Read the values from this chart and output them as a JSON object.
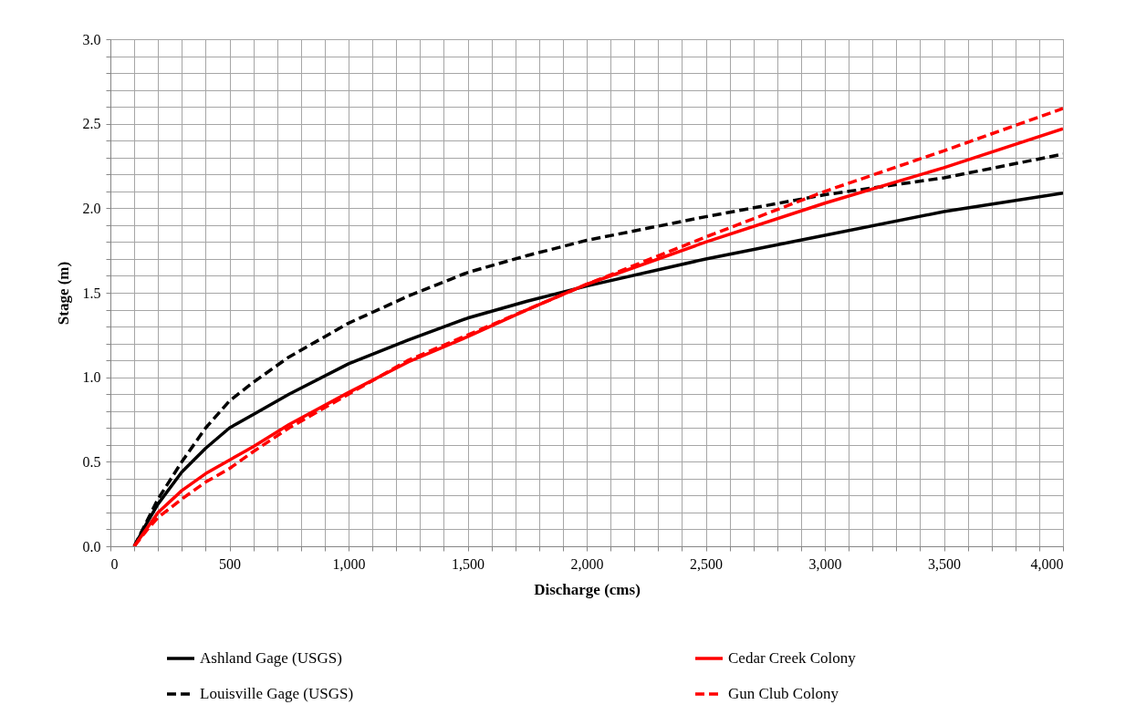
{
  "chart_data": {
    "type": "line",
    "xlabel": "Discharge (cms)",
    "ylabel": "Stage (m)",
    "series": [
      {
        "name": "Ashland Gage (USGS)",
        "color": "#000000",
        "line_style": "solid",
        "x": [
          100,
          150,
          200,
          300,
          400,
          500,
          600,
          750,
          1000,
          1250,
          1500,
          1750,
          2000,
          2500,
          3000,
          3500,
          4000
        ],
        "values": [
          0,
          0.13,
          0.25,
          0.44,
          0.58,
          0.7,
          0.78,
          0.9,
          1.08,
          1.22,
          1.35,
          1.45,
          1.54,
          1.7,
          1.84,
          1.98,
          2.09
        ]
      },
      {
        "name": "Louisville Gage (USGS)",
        "color": "#000000",
        "line_style": "dashed",
        "x": [
          100,
          150,
          200,
          300,
          400,
          500,
          600,
          750,
          1000,
          1250,
          1500,
          1750,
          2000,
          2500,
          3000,
          3500,
          4000
        ],
        "values": [
          0,
          0.14,
          0.28,
          0.5,
          0.7,
          0.86,
          0.97,
          1.12,
          1.32,
          1.48,
          1.62,
          1.72,
          1.81,
          1.95,
          2.08,
          2.18,
          2.32
        ]
      },
      {
        "name": "Cedar Creek Colony",
        "color": "#ff0000",
        "line_style": "solid",
        "x": [
          100,
          150,
          200,
          300,
          400,
          500,
          600,
          750,
          1000,
          1250,
          1500,
          1750,
          2000,
          2500,
          3000,
          3500,
          4000
        ],
        "values": [
          0,
          0.1,
          0.2,
          0.33,
          0.43,
          0.51,
          0.59,
          0.72,
          0.91,
          1.09,
          1.24,
          1.4,
          1.55,
          1.8,
          2.03,
          2.24,
          2.47
        ]
      },
      {
        "name": "Gun Club Colony",
        "color": "#ff0000",
        "line_style": "dashed",
        "x": [
          100,
          150,
          200,
          300,
          400,
          500,
          600,
          750,
          1000,
          1250,
          1500,
          1750,
          2000,
          2500,
          3000,
          3500,
          4000
        ],
        "values": [
          0,
          0.09,
          0.17,
          0.28,
          0.38,
          0.46,
          0.56,
          0.7,
          0.9,
          1.1,
          1.25,
          1.4,
          1.55,
          1.83,
          2.1,
          2.34,
          2.59
        ]
      }
    ],
    "xlim": [
      0,
      4000
    ],
    "xticks": [
      0,
      {
        "value": 100,
        "label": null
      },
      {
        "value": 200,
        "label": null
      },
      {
        "value": 300,
        "label": null
      },
      {
        "value": 400,
        "label": null
      },
      500,
      {
        "value": 600,
        "label": null
      },
      {
        "value": 700,
        "label": null
      },
      {
        "value": 800,
        "label": null
      },
      {
        "value": 900,
        "label": null
      },
      {
        "value": 1000,
        "label": "1,000"
      },
      {
        "value": 1100,
        "label": null
      },
      {
        "value": 1200,
        "label": null
      },
      {
        "value": 1300,
        "label": null
      },
      {
        "value": 1400,
        "label": null
      },
      {
        "value": 1500,
        "label": "1,500"
      },
      {
        "value": 1600,
        "label": null
      },
      {
        "value": 1700,
        "label": null
      },
      {
        "value": 1800,
        "label": null
      },
      {
        "value": 1900,
        "label": null
      },
      {
        "value": 2000,
        "label": "2,000"
      },
      {
        "value": 2100,
        "label": null
      },
      {
        "value": 2200,
        "label": null
      },
      {
        "value": 2300,
        "label": null
      },
      {
        "value": 2400,
        "label": null
      },
      {
        "value": 2500,
        "label": "2,500"
      },
      {
        "value": 2600,
        "label": null
      },
      {
        "value": 2700,
        "label": null
      },
      {
        "value": 2800,
        "label": null
      },
      {
        "value": 2900,
        "label": null
      },
      {
        "value": 3000,
        "label": "3,000"
      },
      {
        "value": 3100,
        "label": null
      },
      {
        "value": 3200,
        "label": null
      },
      {
        "value": 3300,
        "label": null
      },
      {
        "value": 3400,
        "label": null
      },
      {
        "value": 3500,
        "label": "3,500"
      },
      {
        "value": 3600,
        "label": null
      },
      {
        "value": 3700,
        "label": null
      },
      {
        "value": 3800,
        "label": null
      },
      {
        "value": 3900,
        "label": null
      },
      {
        "value": 4000,
        "label": "4,000"
      }
    ],
    "ylim": [
      0,
      3
    ],
    "yticks": [
      {
        "value": 0,
        "label": "0.0"
      },
      {
        "value": 0.1,
        "label": null
      },
      {
        "value": 0.2,
        "label": null
      },
      {
        "value": 0.3,
        "label": null
      },
      {
        "value": 0.4,
        "label": null
      },
      0.5,
      {
        "value": 0.6,
        "label": null
      },
      {
        "value": 0.7,
        "label": null
      },
      {
        "value": 0.8,
        "label": null
      },
      {
        "value": 0.9,
        "label": null
      },
      {
        "value": 1,
        "label": "1.0"
      },
      {
        "value": 1.1,
        "label": null
      },
      {
        "value": 1.2,
        "label": null
      },
      {
        "value": 1.3,
        "label": null
      },
      {
        "value": 1.4,
        "label": null
      },
      1.5,
      {
        "value": 1.6,
        "label": null
      },
      {
        "value": 1.7,
        "label": null
      },
      {
        "value": 1.8,
        "label": null
      },
      {
        "value": 1.9,
        "label": null
      },
      {
        "value": 2,
        "label": "2.0"
      },
      {
        "value": 2.1,
        "label": null
      },
      {
        "value": 2.2,
        "label": null
      },
      {
        "value": 2.3,
        "label": null
      },
      {
        "value": 2.4,
        "label": null
      },
      2.5,
      {
        "value": 2.6,
        "label": null
      },
      {
        "value": 2.7,
        "label": null
      },
      {
        "value": 2.8,
        "label": null
      },
      {
        "value": 2.9,
        "label": null
      },
      {
        "value": 3,
        "label": "3.0"
      }
    ],
    "grid": true,
    "legend": "bottom",
    "marker": "none"
  }
}
